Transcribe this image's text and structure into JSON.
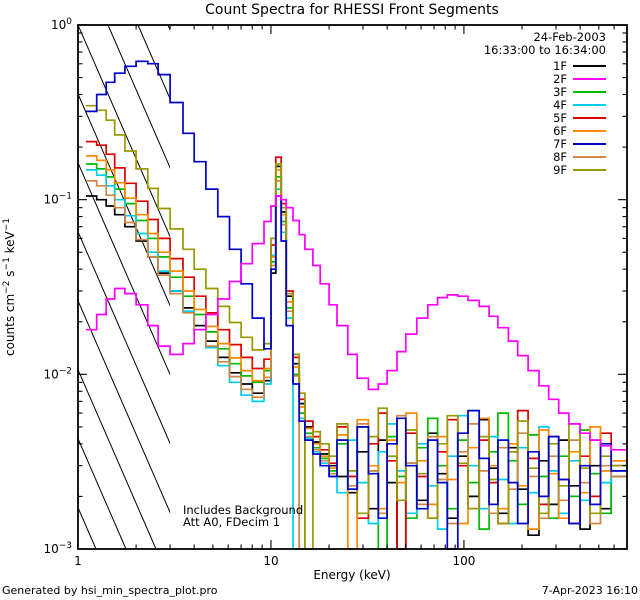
{
  "title": "Count Spectra for RHESSI Front Segments",
  "legend": {
    "date": "24-Feb-2003",
    "time_range": "16:33:00 to 16:34:00"
  },
  "annotations": {
    "includes_background": "Includes Background",
    "attenuator": "Att A0, FDecim 1"
  },
  "footer": {
    "left": "Generated by hsi_min_spectra_plot.pro",
    "right": "7-Apr-2023 16:10"
  },
  "chart_data": {
    "type": "line",
    "title": "Count Spectra for RHESSI Front Segments",
    "x_label": "Energy (keV)",
    "y_label": "counts cm^-2 s^-1 keV^-1",
    "x_scale": "log",
    "y_scale": "log",
    "xlim": [
      1,
      700
    ],
    "ylim": [
      0.001,
      1
    ],
    "x_major_ticks": [
      1,
      10,
      100
    ],
    "y_major_exponents": [
      0,
      -1,
      -2,
      -3
    ],
    "step_mode": true,
    "grid": false,
    "legend_position": "top-right-inside",
    "hatch_region": {
      "x_from": 1,
      "x_to": 3.0
    },
    "energies": [
      1.1,
      1.25,
      1.4,
      1.55,
      1.75,
      2.0,
      2.3,
      2.6,
      3.0,
      3.5,
      4.0,
      4.6,
      5.3,
      6.1,
      7.0,
      8.0,
      9.2,
      10.0,
      10.6,
      11.3,
      12.0,
      13.0,
      14.0,
      15.0,
      16.5,
      18.0,
      20.0,
      22.0,
      25.0,
      28.0,
      32.0,
      36.0,
      40.0,
      45.0,
      50.0,
      57.0,
      65.0,
      73.0,
      82.0,
      93.0,
      105,
      120,
      135,
      150,
      170,
      190,
      215,
      245,
      275,
      310,
      350,
      400,
      450,
      510,
      580
    ],
    "series": [
      {
        "name": "1F",
        "color": "#000000",
        "values": [
          0.105,
          0.1,
          0.092,
          0.082,
          0.07,
          0.058,
          0.047,
          0.038,
          0.03,
          0.024,
          0.019,
          0.0155,
          0.0125,
          0.0102,
          0.0088,
          0.0078,
          0.0092,
          0.038,
          0.155,
          0.085,
          0.028,
          0.0115,
          0.0068,
          0.005,
          0.0041,
          0.0035,
          0.003,
          0.0026,
          0.0021,
          0.0036,
          0.0017,
          0.0042,
          0.0024,
          0.001,
          0.0031,
          0.0019,
          0.0046,
          0.0027,
          0.0015,
          0.0034,
          0.002,
          0.0055,
          0.0029,
          0.0016,
          0.0038,
          0.0022,
          0.0012,
          0.0032,
          0.0018,
          0.0042,
          0.0023,
          0.0013,
          0.003,
          0.0017,
          0.0026
        ]
      },
      {
        "name": "2F",
        "color": "#ff00ff",
        "values": [
          0.018,
          0.022,
          0.027,
          0.031,
          0.029,
          0.025,
          0.019,
          0.0145,
          0.013,
          0.015,
          0.018,
          0.022,
          0.027,
          0.034,
          0.043,
          0.056,
          0.075,
          0.092,
          0.105,
          0.1,
          0.09,
          0.076,
          0.063,
          0.052,
          0.042,
          0.033,
          0.025,
          0.019,
          0.013,
          0.0095,
          0.0082,
          0.0088,
          0.0105,
          0.0135,
          0.017,
          0.021,
          0.025,
          0.0275,
          0.0285,
          0.028,
          0.0265,
          0.0245,
          0.0215,
          0.0185,
          0.0155,
          0.0128,
          0.0105,
          0.0086,
          0.0072,
          0.006,
          0.0052,
          0.0046,
          0.0042,
          0.0039,
          0.0037
        ]
      },
      {
        "name": "3F",
        "color": "#00bb00",
        "values": [
          0.16,
          0.15,
          0.135,
          0.115,
          0.095,
          0.076,
          0.06,
          0.047,
          0.036,
          0.028,
          0.022,
          0.0175,
          0.014,
          0.0115,
          0.0098,
          0.009,
          0.0105,
          0.044,
          0.135,
          0.075,
          0.024,
          0.01,
          0.006,
          0.0046,
          0.0038,
          0.0033,
          0.0028,
          0.004,
          0.0022,
          0.005,
          0.0028,
          0.001,
          0.0044,
          0.0026,
          0.0015,
          0.0038,
          0.0056,
          0.003,
          0.0017,
          0.0042,
          0.0024,
          0.0013,
          0.0036,
          0.006,
          0.0032,
          0.0018,
          0.0045,
          0.0026,
          0.0015,
          0.0034,
          0.002,
          0.0048,
          0.0027,
          0.0016,
          0.003
        ]
      },
      {
        "name": "4F",
        "color": "#00ccee",
        "values": [
          0.148,
          0.138,
          0.12,
          0.1,
          0.081,
          0.064,
          0.05,
          0.039,
          0.03,
          0.023,
          0.018,
          0.0142,
          0.0112,
          0.009,
          0.0076,
          0.007,
          0.0088,
          0.048,
          0.115,
          0.065,
          0.021,
          0.001,
          0.0056,
          0.0043,
          0.0036,
          0.0031,
          0.0026,
          0.0021,
          0.0042,
          0.0024,
          0.0014,
          0.0036,
          0.0052,
          0.0028,
          0.0016,
          0.004,
          0.0023,
          0.0013,
          0.0034,
          0.0058,
          0.003,
          0.0017,
          0.0044,
          0.0025,
          0.0014,
          0.0038,
          0.0021,
          0.005,
          0.0028,
          0.0016,
          0.0032,
          0.0019,
          0.0042,
          0.0024,
          0.0028
        ]
      },
      {
        "name": "5F",
        "color": "#dd0000",
        "values": [
          0.215,
          0.205,
          0.182,
          0.152,
          0.124,
          0.098,
          0.077,
          0.06,
          0.046,
          0.036,
          0.028,
          0.0225,
          0.018,
          0.0148,
          0.0125,
          0.0108,
          0.0122,
          0.055,
          0.175,
          0.095,
          0.03,
          0.0125,
          0.0072,
          0.0054,
          0.0044,
          0.0037,
          0.0031,
          0.005,
          0.0026,
          0.0015,
          0.004,
          0.006,
          0.0032,
          0.001,
          0.0046,
          0.0026,
          0.0015,
          0.0036,
          0.0055,
          0.003,
          0.0017,
          0.0042,
          0.0024,
          0.0014,
          0.0036,
          0.0062,
          0.0033,
          0.0018,
          0.0044,
          0.0025,
          0.0014,
          0.0034,
          0.002,
          0.0046,
          0.003
        ]
      },
      {
        "name": "6F",
        "color": "#ff8800",
        "values": [
          0.178,
          0.168,
          0.148,
          0.125,
          0.102,
          0.082,
          0.064,
          0.05,
          0.039,
          0.03,
          0.0235,
          0.0188,
          0.015,
          0.0124,
          0.0105,
          0.0092,
          0.0108,
          0.047,
          0.148,
          0.082,
          0.026,
          0.011,
          0.0065,
          0.0049,
          0.004,
          0.0034,
          0.0029,
          0.0045,
          0.001,
          0.0055,
          0.003,
          0.0017,
          0.0042,
          0.0024,
          0.006,
          0.0032,
          0.0018,
          0.0044,
          0.0025,
          0.0014,
          0.0038,
          0.0056,
          0.003,
          0.0017,
          0.004,
          0.0023,
          0.0013,
          0.0048,
          0.0027,
          0.0015,
          0.0036,
          0.0021,
          0.005,
          0.0028,
          0.0032
        ]
      },
      {
        "name": "7F",
        "color": "#0000cc",
        "values": [
          0.32,
          0.4,
          0.47,
          0.53,
          0.58,
          0.62,
          0.6,
          0.52,
          0.36,
          0.24,
          0.165,
          0.115,
          0.08,
          0.052,
          0.033,
          0.021,
          0.014,
          0.04,
          0.105,
          0.058,
          0.019,
          0.0088,
          0.0054,
          0.0042,
          0.0035,
          0.003,
          0.0026,
          0.0042,
          0.0022,
          0.005,
          0.0027,
          0.0015,
          0.004,
          0.0056,
          0.003,
          0.0017,
          0.0042,
          0.0024,
          0.001,
          0.0046,
          0.0062,
          0.0033,
          0.0018,
          0.0042,
          0.0024,
          0.0014,
          0.0036,
          0.002,
          0.0044,
          0.0025,
          0.0014,
          0.003,
          0.0018,
          0.004,
          0.0028
        ]
      },
      {
        "name": "8F",
        "color": "#cc8844",
        "values": [
          0.128,
          0.12,
          0.106,
          0.09,
          0.074,
          0.059,
          0.047,
          0.037,
          0.029,
          0.0225,
          0.018,
          0.0145,
          0.0118,
          0.0097,
          0.0082,
          0.0074,
          0.0096,
          0.042,
          0.128,
          0.072,
          0.023,
          0.0098,
          0.001,
          0.0044,
          0.0037,
          0.0032,
          0.0027,
          0.0042,
          0.0023,
          0.0052,
          0.0028,
          0.0016,
          0.004,
          0.0058,
          0.0031,
          0.0018,
          0.0044,
          0.0025,
          0.0014,
          0.0036,
          0.0052,
          0.0028,
          0.0016,
          0.0038,
          0.0022,
          0.0046,
          0.0026,
          0.0015,
          0.0034,
          0.0019,
          0.0042,
          0.0024,
          0.0014,
          0.003,
          0.0026
        ]
      },
      {
        "name": "9F",
        "color": "#999900",
        "values": [
          0.345,
          0.325,
          0.285,
          0.235,
          0.19,
          0.15,
          0.116,
          0.089,
          0.068,
          0.052,
          0.04,
          0.031,
          0.0245,
          0.0198,
          0.0163,
          0.0138,
          0.015,
          0.06,
          0.16,
          0.09,
          0.029,
          0.013,
          0.0078,
          0.001,
          0.0047,
          0.004,
          0.0034,
          0.0052,
          0.0028,
          0.0016,
          0.0044,
          0.0064,
          0.0034,
          0.0019,
          0.0048,
          0.0027,
          0.0015,
          0.004,
          0.0058,
          0.0031,
          0.0017,
          0.0044,
          0.0025,
          0.0014,
          0.0036,
          0.0054,
          0.0029,
          0.0016,
          0.004,
          0.0023,
          0.0052,
          0.0029,
          0.0016,
          0.0034,
          0.003
        ]
      }
    ]
  }
}
